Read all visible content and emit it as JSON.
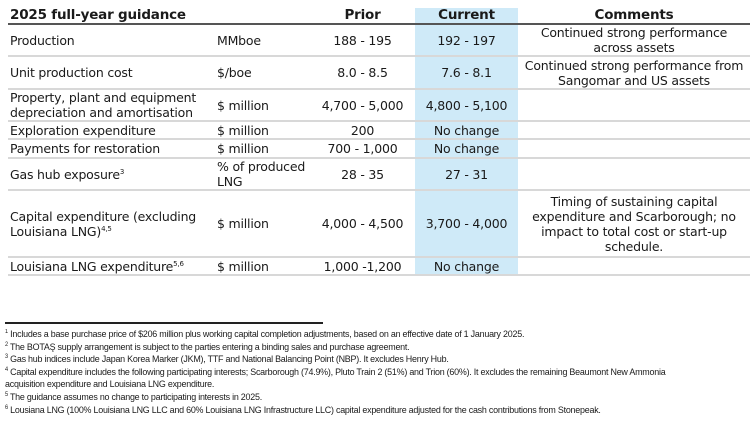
{
  "table": {
    "headers": {
      "title": "2025 full-year guidance",
      "unit": "",
      "prior": "Prior",
      "current": "Current",
      "comments": "Comments"
    },
    "rows": [
      {
        "label": "Production",
        "sup": "",
        "unit": "MMboe",
        "prior": "188 - 195",
        "current": "192 - 197",
        "comment": "Continued strong performance across assets"
      },
      {
        "label": "Unit production cost",
        "sup": "",
        "unit": "$/boe",
        "prior": "8.0 - 8.5",
        "current": "7.6 - 8.1",
        "comment": "Continued strong performance from Sangomar and US assets"
      },
      {
        "label": "Property, plant and equipment depreciation and amortisation",
        "sup": "",
        "unit": "$ million",
        "prior": "4,700 - 5,000",
        "current": "4,800 - 5,100",
        "comment": ""
      },
      {
        "label": "Exploration expenditure",
        "sup": "",
        "unit": "$ million",
        "prior": "200",
        "current": "No change",
        "comment": ""
      },
      {
        "label": "Payments for restoration",
        "sup": "",
        "unit": "$ million",
        "prior": "700 - 1,000",
        "current": "No change",
        "comment": ""
      },
      {
        "label": "Gas hub exposure",
        "sup": "3",
        "unit": "% of produced LNG",
        "prior": "28 - 35",
        "current": "27 - 31",
        "comment": ""
      },
      {
        "label": "Capital expenditure (excluding Louisiana LNG)",
        "sup": "4,5",
        "unit": "$ million",
        "prior": "4,000 - 4,500",
        "current": "3,700 - 4,000",
        "comment": "Timing of sustaining capital expenditure and Scarborough; no impact to total cost or start-up schedule."
      },
      {
        "label": "Louisiana LNG expenditure",
        "sup": "5,6",
        "unit": "$ million",
        "prior": "1,000 -1,200",
        "current": "No change",
        "comment": ""
      }
    ]
  },
  "footnotes": [
    {
      "n": "1",
      "text": "Includes a base purchase price of $206 million plus working capital completion adjustments, based on an effective date of 1 January 2025."
    },
    {
      "n": "2",
      "text": "The BOTAŞ supply arrangement is subject to the parties entering a binding sales and purchase agreement."
    },
    {
      "n": "3",
      "text": "Gas hub indices include Japan Korea Marker (JKM), TTF and National Balancing Point (NBP). It excludes Henry Hub."
    },
    {
      "n": "4",
      "text": "Capital expenditure includes the following participating interests; Scarborough (74.9%), Pluto Train 2 (51%) and Trion (60%). It excludes the remaining Beaumont New Ammonia acquisition expenditure and Louisiana LNG expenditure."
    },
    {
      "n": "5",
      "text": "The guidance assumes no change to participating interests in 2025."
    },
    {
      "n": "6",
      "text": "Lousiana LNG (100% Louisiana LNG LLC and 60% Louisiana LNG Infrastructure LLC) capital expenditure adjusted for the cash contributions from Stonepeak."
    }
  ],
  "colors": {
    "current_column_bg": "#cfeaf8",
    "row_divider": "#d8d8d8"
  }
}
